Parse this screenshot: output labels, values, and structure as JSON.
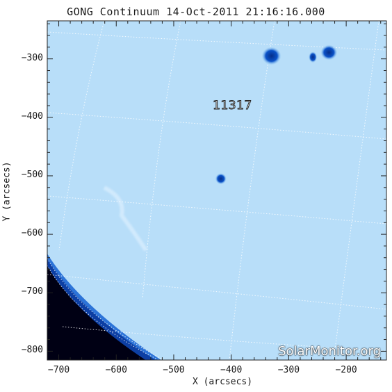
{
  "chart_data": {
    "type": "image",
    "title": "GONG Continuum 14-Oct-2011 21:16:16.000",
    "xlabel": "X (arcsecs)",
    "ylabel": "Y (arcsecs)",
    "xlim": [
      -720,
      -130
    ],
    "ylim": [
      -815,
      -235
    ],
    "x_ticks": [
      "−700",
      "−600",
      "−500",
      "−400",
      "−300",
      "−200"
    ],
    "y_ticks": [
      "−300",
      "−400",
      "−500",
      "−600",
      "−700",
      "−800"
    ],
    "x_tick_values": [
      -700,
      -600,
      -500,
      -400,
      -300,
      -200
    ],
    "y_tick_values": [
      -300,
      -400,
      -500,
      -600,
      -700,
      -800
    ],
    "grid": "heliographic dotted lines",
    "active_regions": [
      {
        "label": "11317",
        "label_x": -420,
        "label_y": -382
      }
    ],
    "sunspots": [
      {
        "x": -330,
        "y": -295
      },
      {
        "x": -258,
        "y": -297
      },
      {
        "x": -230,
        "y": -289
      },
      {
        "x": -418,
        "y": -505
      }
    ],
    "watermark": "SolarMonitor.org",
    "colors": {
      "disk": "#bfe2fb",
      "spot": "#0a4fc0",
      "space": "#000014",
      "limb": "#1a5fd0"
    }
  }
}
